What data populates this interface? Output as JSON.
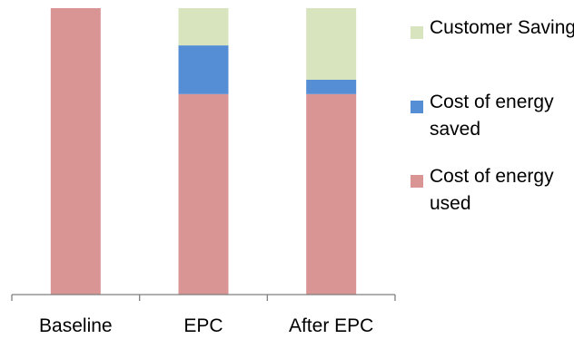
{
  "chart_data": {
    "type": "bar",
    "stacked": true,
    "categories": [
      "Baseline",
      "EPC",
      "After EPC"
    ],
    "series": [
      {
        "name": "Cost of energy used",
        "color": "#d99594",
        "values": [
          100,
          70,
          70
        ]
      },
      {
        "name": "Cost of energy saved",
        "color": "#558ed5",
        "values": [
          0,
          17,
          5
        ]
      },
      {
        "name": "Customer Saving",
        "color": "#d7e4bd",
        "values": [
          0,
          13,
          25
        ]
      }
    ],
    "ylim": [
      0,
      100
    ],
    "grid": false,
    "legend_position": "right",
    "legend_order": [
      "Customer Saving",
      "Cost of energy saved",
      "Cost of energy used"
    ],
    "axis_color": "#7f7f7f"
  }
}
